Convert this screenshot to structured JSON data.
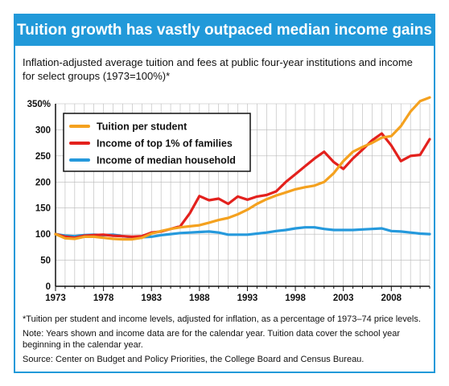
{
  "header": {
    "title": "Tuition growth has vastly outpaced median income gains",
    "subtitle": "Inflation-adjusted average tuition and fees at public four-year institutions and income for select groups (1973=100%)*"
  },
  "notes": {
    "footnote": "*Tuition per student and income levels, adjusted for inflation, as a percentage of 1973–74 price levels.",
    "note": "Note: Years shown and income data are for the calendar year. Tuition data cover the school year beginning in the calendar year.",
    "source": "Source: Center on Budget and Policy Priorities, the College Board and Census Bureau."
  },
  "colors": {
    "accent": "#2199d9",
    "tuition": "#f4a11f",
    "top1": "#e3211d",
    "median": "#2599dc",
    "legend_border": "#111111"
  },
  "chart_data": {
    "type": "line",
    "xlim": [
      1973,
      2012
    ],
    "ylim": [
      0,
      350
    ],
    "x_ticks": [
      1973,
      1978,
      1983,
      1988,
      1993,
      1998,
      2003,
      2008
    ],
    "y_ticks": [
      0,
      50,
      100,
      150,
      200,
      250,
      300,
      350
    ],
    "y_tick_labels": [
      "0",
      "50",
      "100",
      "150",
      "200",
      "250",
      "300",
      "350%"
    ],
    "grid": true,
    "legend_position": "top-left",
    "series": [
      {
        "name": "Tuition per student",
        "color": "#f4a11f",
        "x": [
          1973,
          1974,
          1975,
          1976,
          1977,
          1978,
          1979,
          1980,
          1981,
          1982,
          1983,
          1984,
          1985,
          1986,
          1987,
          1988,
          1989,
          1990,
          1991,
          1992,
          1993,
          1994,
          1995,
          1996,
          1997,
          1998,
          1999,
          2000,
          2001,
          2002,
          2003,
          2004,
          2005,
          2006,
          2007,
          2008,
          2009,
          2010,
          2011,
          2012
        ],
        "values": [
          100,
          92,
          91,
          95,
          95,
          93,
          91,
          90,
          90,
          93,
          101,
          106,
          110,
          113,
          115,
          117,
          122,
          127,
          131,
          138,
          147,
          158,
          167,
          174,
          180,
          186,
          190,
          193,
          200,
          217,
          240,
          258,
          267,
          275,
          285,
          288,
          307,
          335,
          355,
          362
        ]
      },
      {
        "name": "Income of top 1% of families",
        "color": "#e3211d",
        "x": [
          1973,
          1974,
          1975,
          1976,
          1977,
          1978,
          1979,
          1980,
          1981,
          1982,
          1983,
          1984,
          1985,
          1986,
          1987,
          1988,
          1989,
          1990,
          1991,
          1992,
          1993,
          1994,
          1995,
          1996,
          1997,
          1998,
          1999,
          2000,
          2001,
          2002,
          2003,
          2004,
          2005,
          2006,
          2007,
          2008,
          2009,
          2010,
          2011,
          2012
        ],
        "values": [
          100,
          95,
          93,
          97,
          98,
          99,
          97,
          96,
          95,
          96,
          103,
          105,
          110,
          115,
          140,
          173,
          165,
          168,
          158,
          172,
          166,
          172,
          175,
          182,
          200,
          215,
          230,
          245,
          258,
          238,
          225,
          245,
          262,
          280,
          293,
          270,
          240,
          250,
          252,
          282
        ]
      },
      {
        "name": "Income of median household",
        "color": "#2599dc",
        "x": [
          1973,
          1974,
          1975,
          1976,
          1977,
          1978,
          1979,
          1980,
          1981,
          1982,
          1983,
          1984,
          1985,
          1986,
          1987,
          1988,
          1989,
          1990,
          1991,
          1992,
          1993,
          1994,
          1995,
          1996,
          1997,
          1998,
          1999,
          2000,
          2001,
          2002,
          2003,
          2004,
          2005,
          2006,
          2007,
          2008,
          2009,
          2010,
          2011,
          2012
        ],
        "values": [
          100,
          97,
          96,
          98,
          99,
          98,
          99,
          96,
          94,
          94,
          95,
          98,
          100,
          102,
          103,
          104,
          105,
          103,
          99,
          99,
          99,
          101,
          103,
          106,
          108,
          111,
          113,
          113,
          110,
          108,
          108,
          108,
          109,
          110,
          111,
          106,
          105,
          103,
          101,
          100
        ]
      }
    ]
  }
}
